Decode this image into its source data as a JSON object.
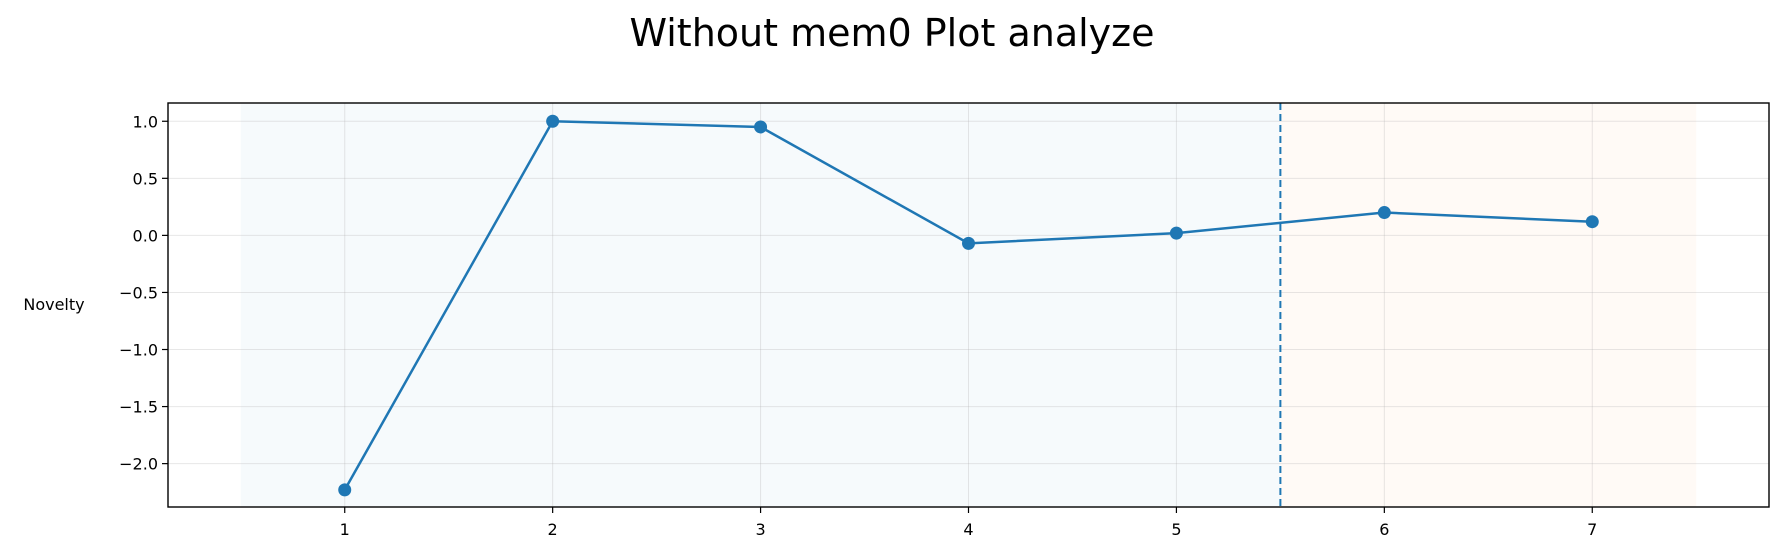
{
  "chart_data": {
    "type": "line",
    "title": "Without mem0 Plot analyze",
    "xlabel": "",
    "ylabel": "Novelty",
    "x": [
      1,
      2,
      3,
      4,
      5,
      6,
      7
    ],
    "series": [
      {
        "values": [
          -2.23,
          1.0,
          0.95,
          -0.07,
          0.02,
          0.2,
          0.12
        ],
        "color": "#1f77b4"
      }
    ],
    "xlim": [
      0.15,
      7.85
    ],
    "ylim": [
      -2.38,
      1.16
    ],
    "xticks": [
      1,
      2,
      3,
      4,
      5,
      6,
      7
    ],
    "yticks": [
      1.0,
      0.5,
      0.0,
      -0.5,
      -1.0,
      -1.5,
      -2.0
    ],
    "ytick_labels": [
      "1.0",
      "0.5",
      "0.0",
      "−0.5",
      "−1.0",
      "−1.5",
      "−2.0"
    ],
    "shaded_regions": [
      {
        "x_start": 0.5,
        "x_end": 5.5,
        "color": "#1f77b4",
        "opacity": 0.04
      },
      {
        "x_start": 5.5,
        "x_end": 7.5,
        "color": "#ff7f0e",
        "opacity": 0.04
      }
    ],
    "vertical_line": {
      "x": 5.5,
      "style": "dashed",
      "color": "#1f77b4"
    },
    "grid": true,
    "legend": "none"
  }
}
